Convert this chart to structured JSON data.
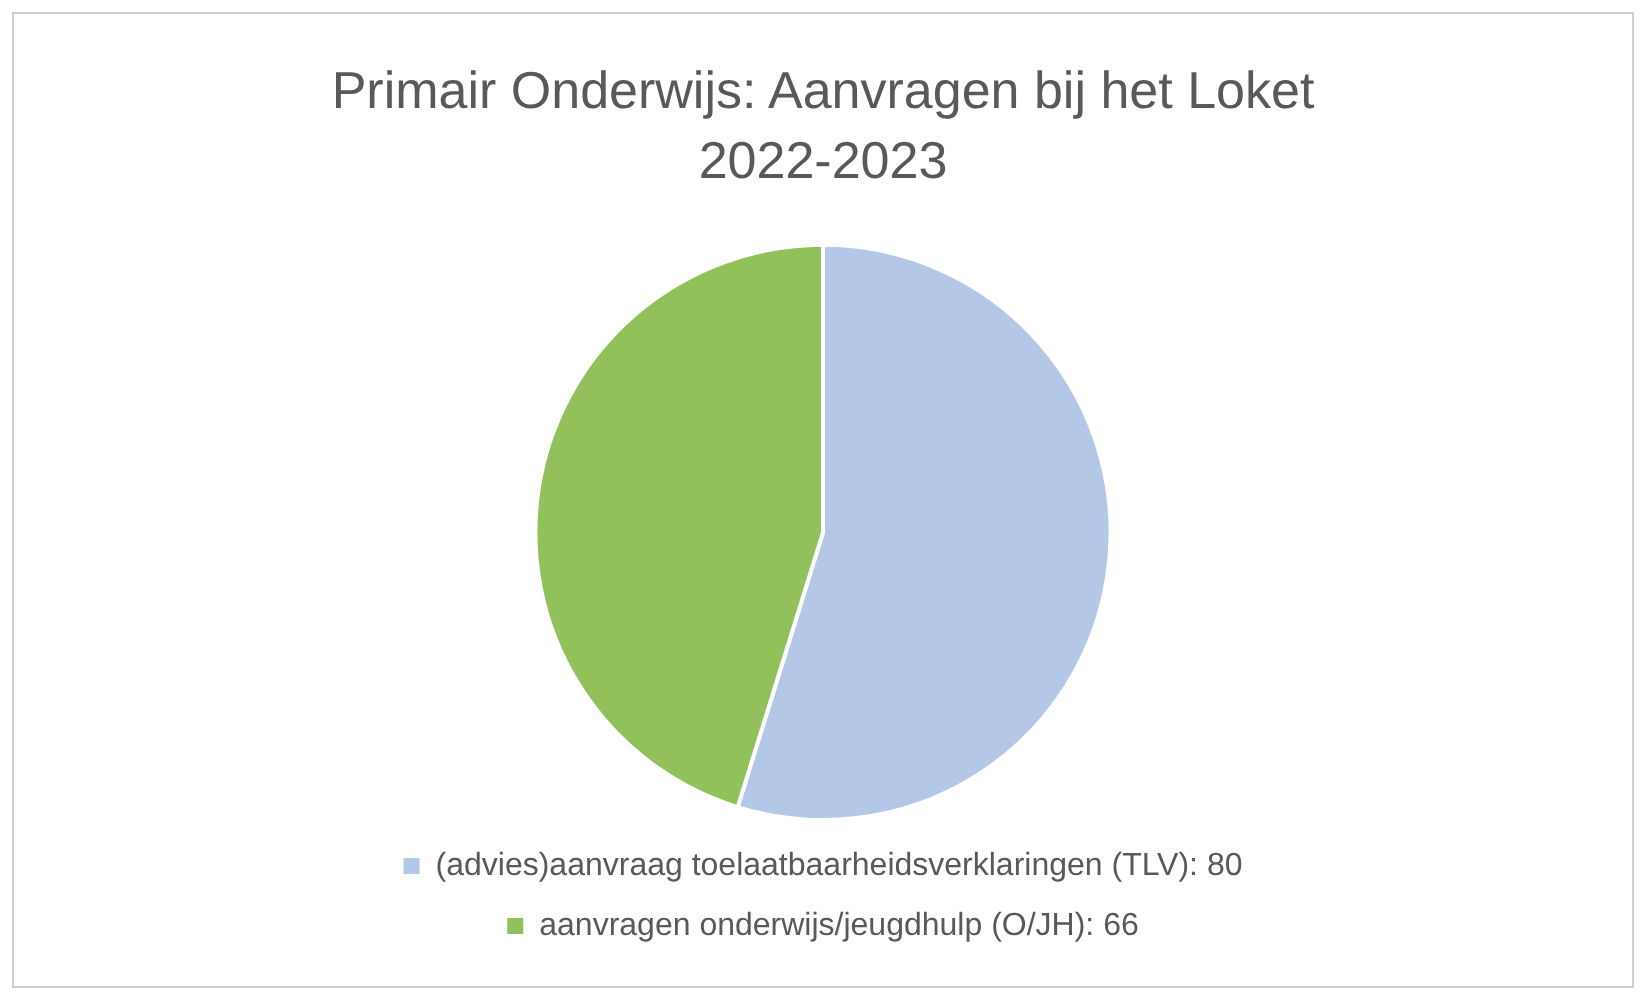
{
  "chart_data": {
    "type": "pie",
    "title": "Primair Onderwijs: Aanvragen bij het Loket",
    "subtitle": "2022-2023",
    "categories": [
      "(advies)aanvraag toelaatbaarheidsverklaringen (TLV): 80",
      "aanvragen onderwijs/jeugdhulp (O/JH): 66"
    ],
    "values": [
      80,
      66
    ],
    "colors": [
      "#b4c7e7",
      "#92c05a"
    ],
    "legend": "bottom"
  }
}
